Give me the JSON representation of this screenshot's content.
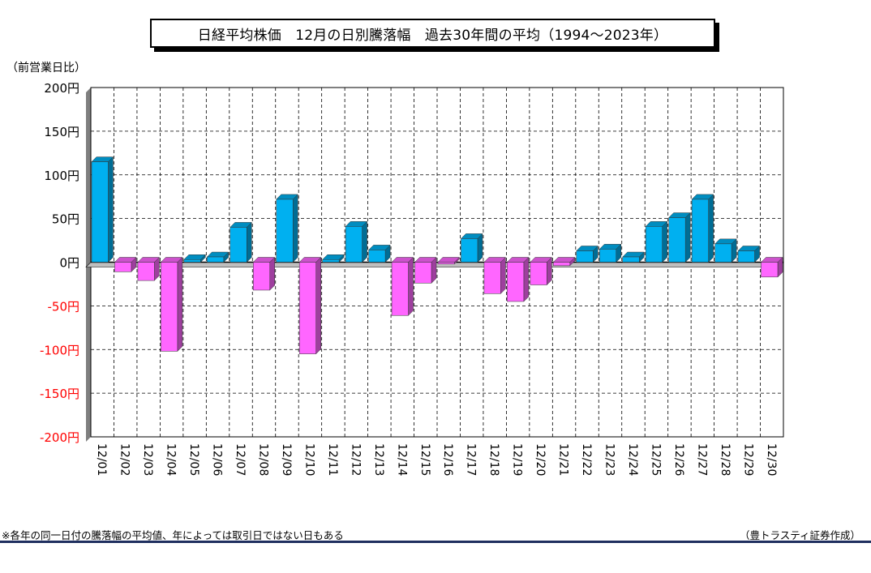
{
  "chart_data": {
    "type": "bar",
    "title": "日経平均株価　12月の日別騰落幅　過去30年間の平均（1994～2023年）",
    "ylabel": "（前営業日比）",
    "ylim": [
      -200,
      200
    ],
    "yticks": [
      200,
      150,
      100,
      50,
      0,
      -50,
      -100,
      -150,
      -200
    ],
    "ytick_labels": [
      "200円",
      "150円",
      "100円",
      "50円",
      "0円",
      "-50円",
      "-100円",
      "-150円",
      "-200円"
    ],
    "grid": true,
    "categories": [
      "12/01",
      "12/02",
      "12/03",
      "12/04",
      "12/05",
      "12/06",
      "12/07",
      "12/08",
      "12/09",
      "12/10",
      "12/11",
      "12/12",
      "12/13",
      "12/14",
      "12/15",
      "12/16",
      "12/17",
      "12/18",
      "12/19",
      "12/20",
      "12/21",
      "12/22",
      "12/23",
      "12/24",
      "12/25",
      "12/26",
      "12/27",
      "12/28",
      "12/29",
      "12/30"
    ],
    "values": [
      115,
      -11,
      -21,
      -102,
      3,
      6,
      40,
      -32,
      72,
      -105,
      3,
      41,
      14,
      -61,
      -24,
      -2,
      27,
      -36,
      -45,
      -26,
      -4,
      13,
      15,
      6,
      41,
      51,
      72,
      21,
      13,
      -17
    ],
    "colors": {
      "positive": "#00b0f0",
      "negative": "#ff66ff"
    }
  },
  "footnote": "※各年の同一日付の騰落幅の平均値、年によっては取引日ではない日もある",
  "credit": "（豊トラスティ証券作成）"
}
